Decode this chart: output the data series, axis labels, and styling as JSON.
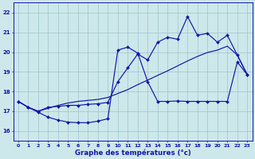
{
  "title": "Graphe des températures (°c)",
  "hours": [
    0,
    1,
    2,
    3,
    4,
    5,
    6,
    7,
    8,
    9,
    10,
    11,
    12,
    13,
    14,
    15,
    16,
    17,
    18,
    19,
    20,
    21,
    22,
    23
  ],
  "ylim": [
    15.5,
    22.5
  ],
  "xlim": [
    -0.5,
    23.5
  ],
  "yticks": [
    16,
    17,
    18,
    19,
    20,
    21,
    22
  ],
  "bg_color": "#cce8ea",
  "line_color": "#1414aa",
  "grid_color": "#9dc4c8",
  "line1_y": [
    17.5,
    17.2,
    16.95,
    16.7,
    16.55,
    16.45,
    16.42,
    16.42,
    16.5,
    16.62,
    20.1,
    20.25,
    19.95,
    18.5,
    17.5,
    17.5,
    17.52,
    17.5,
    17.5,
    17.5,
    17.5,
    17.5,
    19.5,
    18.85
  ],
  "line2_y": [
    17.5,
    17.2,
    17.0,
    17.2,
    17.25,
    17.3,
    17.3,
    17.35,
    17.38,
    17.45,
    18.5,
    19.2,
    19.9,
    19.6,
    20.5,
    20.75,
    20.65,
    21.8,
    20.85,
    20.95,
    20.5,
    20.85,
    19.85,
    18.85
  ],
  "line3_y": [
    17.5,
    17.2,
    17.0,
    17.15,
    17.3,
    17.42,
    17.5,
    17.55,
    17.6,
    17.7,
    17.9,
    18.1,
    18.35,
    18.58,
    18.82,
    19.05,
    19.3,
    19.55,
    19.78,
    19.98,
    20.1,
    20.3,
    19.85,
    18.85
  ]
}
